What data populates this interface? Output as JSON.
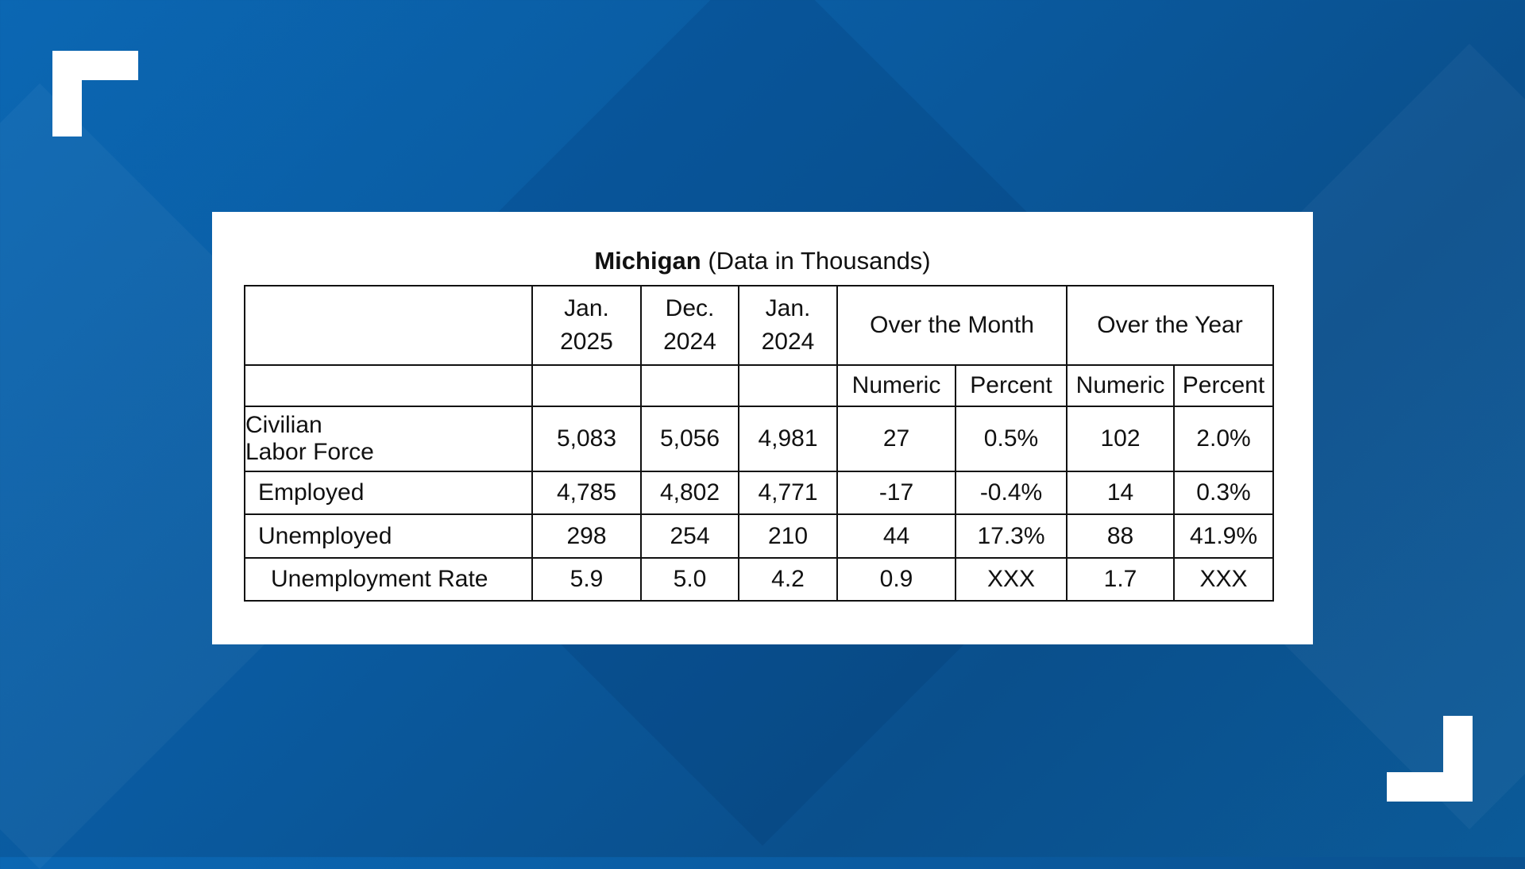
{
  "title": {
    "bold": "Michigan",
    "rest": "(Data in Thousands)"
  },
  "header": {
    "col1": [
      "Jan.",
      "2025"
    ],
    "col2": [
      "Dec.",
      "2024"
    ],
    "col3": [
      "Jan.",
      "2024"
    ],
    "group_month": "Over the Month",
    "group_year": "Over the Year",
    "sub": [
      "Numeric",
      "Percent",
      "Numeric",
      "Percent"
    ]
  },
  "rows": [
    {
      "label": [
        "Civilian",
        "Labor Force"
      ],
      "values": [
        "5,083",
        "5,056",
        "4,981",
        "27",
        "0.5%",
        "102",
        "2.0%"
      ]
    },
    {
      "label": [
        "Employed"
      ],
      "values": [
        "4,785",
        "4,802",
        "4,771",
        "-17",
        "-0.4%",
        "14",
        "0.3%"
      ]
    },
    {
      "label": [
        "Unemployed"
      ],
      "values": [
        "298",
        "254",
        "210",
        "44",
        "17.3%",
        "88",
        "41.9%"
      ]
    },
    {
      "label": [
        "Unemployment Rate"
      ],
      "values": [
        "5.9",
        "5.0",
        "4.2",
        "0.9",
        "XXX",
        "1.7",
        "XXX"
      ]
    }
  ],
  "colors": {
    "background": "#0a5a9f",
    "card": "#ffffff",
    "bracket": "#ffffff"
  }
}
